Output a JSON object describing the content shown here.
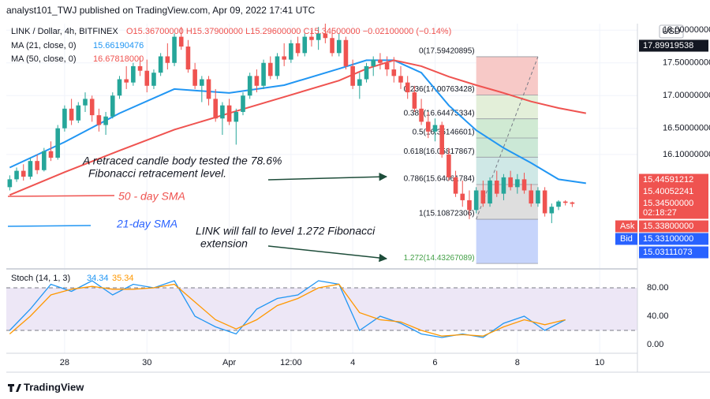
{
  "header": "analyst101_TWJ published on TradingView.com, Apr 09, 2022 17:41 UTC",
  "chart_data": {
    "type": "candlestick",
    "title": "LINK / Dollar, 4h, BITFINEX",
    "ohlc_legend": "O15.36700000 H15.37900000 L15.29600000 C15.34500000 −0.02100000 (−0.14%)",
    "currency": "USD",
    "up_color": "#26a69a",
    "down_color": "#ef5350",
    "xlim": [
      -0.5,
      91.5
    ],
    "xticks": [
      {
        "value": 8,
        "label": "28"
      },
      {
        "value": 20,
        "label": "30"
      },
      {
        "value": 32,
        "label": "Apr"
      },
      {
        "value": 41,
        "label": "12:00"
      },
      {
        "value": 50,
        "label": "4"
      },
      {
        "value": 62,
        "label": "6"
      },
      {
        "value": 74,
        "label": "8"
      },
      {
        "value": 86,
        "label": "10"
      }
    ],
    "ylim": [
      14.35,
      18.1
    ],
    "yticks": [
      {
        "value": 18,
        "label": "18.00000000"
      },
      {
        "value": 17.5,
        "label": "17.50000000"
      },
      {
        "value": 17,
        "label": "17.00000000"
      },
      {
        "value": 16.5,
        "label": "16.50000000"
      },
      {
        "value": 16.1,
        "label": "16.10000000"
      }
    ],
    "grid": true,
    "ohlc": [
      [
        15.6,
        15.78,
        15.55,
        15.72
      ],
      [
        15.72,
        15.9,
        15.68,
        15.85
      ],
      [
        15.85,
        15.95,
        15.7,
        15.76
      ],
      [
        15.76,
        16.05,
        15.72,
        16.0
      ],
      [
        16.0,
        16.1,
        15.8,
        15.86
      ],
      [
        15.86,
        16.2,
        15.84,
        16.15
      ],
      [
        16.15,
        16.3,
        16.0,
        16.05
      ],
      [
        16.05,
        16.55,
        16.02,
        16.5
      ],
      [
        16.5,
        16.85,
        16.45,
        16.8
      ],
      [
        16.8,
        16.95,
        16.55,
        16.62
      ],
      [
        16.62,
        16.9,
        16.58,
        16.85
      ],
      [
        16.85,
        17.05,
        16.75,
        16.95
      ],
      [
        16.95,
        17.0,
        16.6,
        16.7
      ],
      [
        16.7,
        16.8,
        16.45,
        16.55
      ],
      [
        16.55,
        16.75,
        16.4,
        16.68
      ],
      [
        16.68,
        17.05,
        16.65,
        17.0
      ],
      [
        17.0,
        17.3,
        16.95,
        17.25
      ],
      [
        17.25,
        17.45,
        17.1,
        17.2
      ],
      [
        17.2,
        17.5,
        17.15,
        17.45
      ],
      [
        17.45,
        17.6,
        17.3,
        17.38
      ],
      [
        17.38,
        17.55,
        17.05,
        17.15
      ],
      [
        17.15,
        17.4,
        17.1,
        17.35
      ],
      [
        17.35,
        17.65,
        17.3,
        17.6
      ],
      [
        17.6,
        17.8,
        17.4,
        17.5
      ],
      [
        17.5,
        17.95,
        17.45,
        17.9
      ],
      [
        17.9,
        18.05,
        17.7,
        17.75
      ],
      [
        17.75,
        17.85,
        17.35,
        17.4
      ],
      [
        17.4,
        17.5,
        17.1,
        17.15
      ],
      [
        17.15,
        17.3,
        16.9,
        17.25
      ],
      [
        17.25,
        17.3,
        16.85,
        16.95
      ],
      [
        16.95,
        17.1,
        16.6,
        16.65
      ],
      [
        16.65,
        16.9,
        16.4,
        16.85
      ],
      [
        16.85,
        16.95,
        16.55,
        16.6
      ],
      [
        16.6,
        16.8,
        16.25,
        16.75
      ],
      [
        16.75,
        17.05,
        16.7,
        17.0
      ],
      [
        17.0,
        17.35,
        16.95,
        17.3
      ],
      [
        17.3,
        17.4,
        17.05,
        17.15
      ],
      [
        17.15,
        17.55,
        17.1,
        17.5
      ],
      [
        17.5,
        17.6,
        17.25,
        17.3
      ],
      [
        17.3,
        17.65,
        17.25,
        17.6
      ],
      [
        17.6,
        17.8,
        17.45,
        17.55
      ],
      [
        17.55,
        17.85,
        17.5,
        17.8
      ],
      [
        17.8,
        17.9,
        17.6,
        17.65
      ],
      [
        17.65,
        17.95,
        17.6,
        17.9
      ],
      [
        17.9,
        18.0,
        17.75,
        17.85
      ],
      [
        17.85,
        18.05,
        17.7,
        17.95
      ],
      [
        17.95,
        18.1,
        17.8,
        17.88
      ],
      [
        17.88,
        18.0,
        17.6,
        17.65
      ],
      [
        17.65,
        17.95,
        17.6,
        17.85
      ],
      [
        17.85,
        17.9,
        17.4,
        17.45
      ],
      [
        17.45,
        17.55,
        17.1,
        17.15
      ],
      [
        17.15,
        17.35,
        16.95,
        17.25
      ],
      [
        17.25,
        17.5,
        17.2,
        17.45
      ],
      [
        17.45,
        17.6,
        17.3,
        17.55
      ],
      [
        17.55,
        17.65,
        17.4,
        17.5
      ],
      [
        17.5,
        17.6,
        17.3,
        17.4
      ],
      [
        17.4,
        17.59,
        17.2,
        17.3
      ],
      [
        17.3,
        17.45,
        17.1,
        17.2
      ],
      [
        17.2,
        17.3,
        16.95,
        17.05
      ],
      [
        17.05,
        17.15,
        16.75,
        16.8
      ],
      [
        16.8,
        16.95,
        16.55,
        16.6
      ],
      [
        16.6,
        16.75,
        16.35,
        16.45
      ],
      [
        16.45,
        16.65,
        16.3,
        16.55
      ],
      [
        16.55,
        16.6,
        16.05,
        16.1
      ],
      [
        16.1,
        16.2,
        15.7,
        15.75
      ],
      [
        15.75,
        15.85,
        15.45,
        15.5
      ],
      [
        15.5,
        15.7,
        15.3,
        15.4
      ],
      [
        15.4,
        15.55,
        15.11,
        15.25
      ],
      [
        15.25,
        15.6,
        15.2,
        15.55
      ],
      [
        15.55,
        15.7,
        15.3,
        15.35
      ],
      [
        15.35,
        15.75,
        15.3,
        15.7
      ],
      [
        15.7,
        15.85,
        15.45,
        15.5
      ],
      [
        15.5,
        15.8,
        15.4,
        15.75
      ],
      [
        15.75,
        15.85,
        15.55,
        15.6
      ],
      [
        15.6,
        15.8,
        15.5,
        15.72
      ],
      [
        15.72,
        15.82,
        15.5,
        15.55
      ],
      [
        15.55,
        15.65,
        15.3,
        15.35
      ],
      [
        15.35,
        15.6,
        15.3,
        15.55
      ],
      [
        15.55,
        15.6,
        15.15,
        15.2
      ],
      [
        15.2,
        15.35,
        15.05,
        15.3
      ],
      [
        15.3,
        15.4,
        15.25,
        15.38
      ],
      [
        15.38,
        15.4,
        15.32,
        15.36
      ],
      [
        15.367,
        15.379,
        15.296,
        15.345
      ]
    ],
    "series": [
      {
        "name": "MA (21, close, 0)",
        "value_label": "15.66190476",
        "color": "#2196f3",
        "x": [
          0,
          8,
          16,
          24,
          32,
          40,
          48,
          52,
          56,
          60,
          64,
          68,
          72,
          76,
          80,
          84
        ],
        "values": [
          15.9,
          16.29,
          16.73,
          17.1,
          17.04,
          17.16,
          17.41,
          17.54,
          17.54,
          17.35,
          16.85,
          16.47,
          16.2,
          15.97,
          15.72,
          15.66
        ]
      },
      {
        "name": "MA (50, close, 0)",
        "value_label": "16.67818000",
        "color": "#ef5350",
        "x": [
          0,
          8,
          16,
          24,
          32,
          40,
          48,
          52,
          56,
          60,
          64,
          68,
          72,
          76,
          80,
          84
        ],
        "values": [
          15.48,
          15.83,
          16.16,
          16.48,
          16.73,
          16.98,
          17.23,
          17.41,
          17.54,
          17.45,
          17.29,
          17.16,
          17.04,
          16.91,
          16.81,
          16.73
        ]
      }
    ],
    "fib": {
      "x": [
        68,
        77
      ],
      "trend_color": "#787b86",
      "levels": [
        {
          "label": "0(17.59420895)",
          "value": 17.59420895,
          "color": "#f7c9c7"
        },
        {
          "label": "0.236(17.00763428)",
          "value": 17.00763428,
          "color": "#e3efd9"
        },
        {
          "label": "0.382(16.64475334)",
          "value": 16.64475334,
          "color": "#d0ead3"
        },
        {
          "label": "0.5(16.35146601)",
          "value": 16.35146601,
          "color": "#cbe8d6"
        },
        {
          "label": "0.618(16.05817867)",
          "value": 16.05817867,
          "color": "#cfe8e6"
        },
        {
          "label": "0.786(15.64061784)",
          "value": 15.64061784,
          "color": "#dedede"
        },
        {
          "label": "1(15.10872306)",
          "value": 15.10872306,
          "color": "#c6d4fb"
        },
        {
          "label": "1.272(14.43267089)",
          "value": 14.43267089,
          "color": null
        }
      ]
    },
    "price_markers": [
      {
        "label": "17.89919538",
        "color": "#131722"
      },
      {
        "label": "15.44591212",
        "color": "#ef5350"
      },
      {
        "label": "15.40052241",
        "color": "#ef5350"
      },
      {
        "label": "15.34500000",
        "color": "#ef5350"
      },
      {
        "label": "02:18:27",
        "color": "#ef5350"
      },
      {
        "tag": "Ask",
        "label": "15.33800000",
        "color": "#ef5350"
      },
      {
        "tag": "Bid",
        "label": "15.33100000",
        "color": "#2962ff"
      },
      {
        "label": "15.03111073",
        "color": "#2962ff"
      }
    ],
    "annotations": [
      "A retraced candle body tested the 78.6%",
      "Fibonacci retracement level.",
      "50 - day SMA",
      "21-day SMA",
      "LINK will fall to level 1.272 Fibonacci",
      "extension"
    ],
    "stoch": {
      "title": "Stoch (14, 1, 3)",
      "ylim": [
        -12.2,
        105.6
      ],
      "yticks": [
        {
          "value": 80,
          "label": "80.00"
        },
        {
          "value": 40,
          "label": "40.00"
        },
        {
          "value": 0,
          "label": "0.00"
        }
      ],
      "bands": [
        20,
        80
      ],
      "band_color": "#ede7f6",
      "series": [
        {
          "name": "34.34",
          "color": "#2196f3",
          "x": [
            0,
            3,
            6,
            9,
            12,
            15,
            18,
            21,
            24,
            27,
            30,
            33,
            36,
            39,
            42,
            45,
            48,
            51,
            54,
            57,
            60,
            63,
            66,
            69,
            72,
            75,
            78,
            81
          ],
          "values": [
            20,
            50,
            85,
            75,
            90,
            70,
            85,
            80,
            90,
            40,
            25,
            15,
            50,
            65,
            70,
            90,
            85,
            20,
            40,
            30,
            15,
            10,
            15,
            10,
            30,
            40,
            20,
            35
          ]
        },
        {
          "name": "35.34",
          "color": "#ff9800",
          "x": [
            0,
            3,
            6,
            9,
            12,
            15,
            18,
            21,
            24,
            27,
            30,
            33,
            36,
            39,
            42,
            45,
            48,
            51,
            54,
            57,
            60,
            63,
            66,
            69,
            72,
            75,
            78,
            81
          ],
          "values": [
            15,
            40,
            70,
            78,
            82,
            78,
            78,
            80,
            85,
            60,
            35,
            22,
            35,
            55,
            65,
            80,
            85,
            45,
            35,
            32,
            20,
            12,
            14,
            12,
            25,
            35,
            28,
            35
          ]
        }
      ]
    },
    "footer": "TradingView"
  }
}
